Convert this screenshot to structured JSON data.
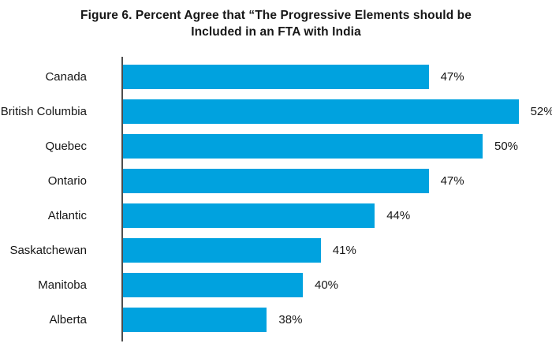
{
  "chart_data": {
    "type": "bar",
    "orientation": "horizontal",
    "title": "Figure 6. Percent Agree that “The Progressive Elements should be Included in an FTA with India",
    "title_line1": "Figure 6. Percent Agree that “The Progressive Elements should be",
    "title_line2": "Included in an FTA with India",
    "categories": [
      "Canada",
      "British Columbia",
      "Quebec",
      "Ontario",
      "Atlantic",
      "Saskatchewan",
      "Manitoba",
      "Alberta"
    ],
    "values": [
      47,
      52,
      50,
      47,
      44,
      41,
      40,
      38
    ],
    "value_labels": [
      "47%",
      "52%",
      "50%",
      "47%",
      "44%",
      "41%",
      "40%",
      "38%"
    ],
    "xlabel": "",
    "ylabel": "",
    "xlim": [
      30,
      54
    ],
    "grid": false,
    "legend": false,
    "bar_color": "#00A2DF",
    "axis_color": "#4D4D4D",
    "text_color": "#171717"
  }
}
